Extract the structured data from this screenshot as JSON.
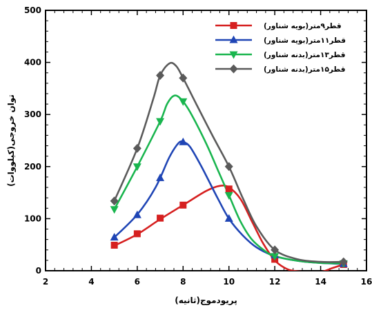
{
  "chart_data": {
    "type": "line",
    "xlabel": "پریودموج(ثانیه)",
    "ylabel": "توان خروجی(کیلووات)",
    "xlim": [
      2,
      16
    ],
    "ylim": [
      0,
      500
    ],
    "xticks": [
      2,
      4,
      6,
      8,
      10,
      12,
      14,
      16
    ],
    "yticks": [
      0,
      100,
      200,
      300,
      400,
      500
    ],
    "legend_position": "top-right",
    "grid": false,
    "series": [
      {
        "name": "قطر۹متر(بویه شناور)",
        "color": "#d62020",
        "marker": "square",
        "points": [
          [
            5,
            49
          ],
          [
            6,
            71
          ],
          [
            7,
            101
          ],
          [
            8,
            126
          ],
          [
            10,
            157
          ],
          [
            12,
            22
          ],
          [
            15,
            12
          ]
        ],
        "curve": [
          [
            5,
            48
          ],
          [
            6,
            70
          ],
          [
            7,
            99
          ],
          [
            8,
            126
          ],
          [
            9,
            153
          ],
          [
            9.6,
            163
          ],
          [
            10,
            160
          ],
          [
            10.5,
            138
          ],
          [
            11,
            95
          ],
          [
            11.5,
            52
          ],
          [
            12,
            20
          ],
          [
            12.5,
            4
          ],
          [
            13,
            -1
          ],
          [
            14,
            -2
          ],
          [
            14.5,
            5
          ],
          [
            15,
            12
          ]
        ]
      },
      {
        "name": "قطر۱۱متر(بویه شناور)",
        "color": "#1f45b5",
        "marker": "triangle-up",
        "points": [
          [
            5,
            64
          ],
          [
            6,
            107
          ],
          [
            7,
            178
          ],
          [
            8,
            247
          ],
          [
            10,
            100
          ],
          [
            12,
            30
          ],
          [
            15,
            13
          ]
        ],
        "curve": [
          [
            5,
            64
          ],
          [
            6,
            108
          ],
          [
            6.8,
            160
          ],
          [
            7.4,
            218
          ],
          [
            7.8,
            245
          ],
          [
            8,
            247
          ],
          [
            8.3,
            238
          ],
          [
            8.8,
            200
          ],
          [
            9.5,
            140
          ],
          [
            10,
            100
          ],
          [
            10.6,
            68
          ],
          [
            11.2,
            45
          ],
          [
            12,
            28
          ],
          [
            13,
            19
          ],
          [
            14,
            15
          ],
          [
            15,
            13
          ]
        ]
      },
      {
        "name": "قطر۱۳متر(بدنه شناور)",
        "color": "#19b54e",
        "marker": "triangle-down",
        "points": [
          [
            5,
            118
          ],
          [
            6,
            200
          ],
          [
            7,
            287
          ],
          [
            8,
            325
          ],
          [
            10,
            145
          ],
          [
            12,
            28
          ],
          [
            15,
            14
          ]
        ],
        "curve": [
          [
            5,
            118
          ],
          [
            6,
            200
          ],
          [
            7,
            287
          ],
          [
            7.3,
            320
          ],
          [
            7.6,
            336
          ],
          [
            7.9,
            330
          ],
          [
            8.3,
            305
          ],
          [
            9,
            245
          ],
          [
            9.5,
            195
          ],
          [
            10,
            145
          ],
          [
            10.5,
            95
          ],
          [
            11,
            60
          ],
          [
            11.6,
            37
          ],
          [
            12,
            28
          ],
          [
            13,
            19
          ],
          [
            14,
            15
          ],
          [
            15,
            14
          ]
        ]
      },
      {
        "name": "قطر۱۵متر(بدنه شناور)",
        "color": "#5a5a5a",
        "marker": "diamond",
        "points": [
          [
            5,
            134
          ],
          [
            6,
            235
          ],
          [
            7,
            375
          ],
          [
            8,
            370
          ],
          [
            10,
            200
          ],
          [
            12,
            40
          ],
          [
            15,
            17
          ]
        ],
        "curve": [
          [
            5,
            134
          ],
          [
            6,
            235
          ],
          [
            6.7,
            330
          ],
          [
            7,
            375
          ],
          [
            7.4,
            398
          ],
          [
            7.7,
            393
          ],
          [
            8,
            370
          ],
          [
            8.6,
            318
          ],
          [
            9.3,
            258
          ],
          [
            10,
            200
          ],
          [
            10.6,
            140
          ],
          [
            11.2,
            85
          ],
          [
            12,
            40
          ],
          [
            13,
            22
          ],
          [
            14,
            17
          ],
          [
            15,
            17
          ]
        ]
      }
    ]
  }
}
